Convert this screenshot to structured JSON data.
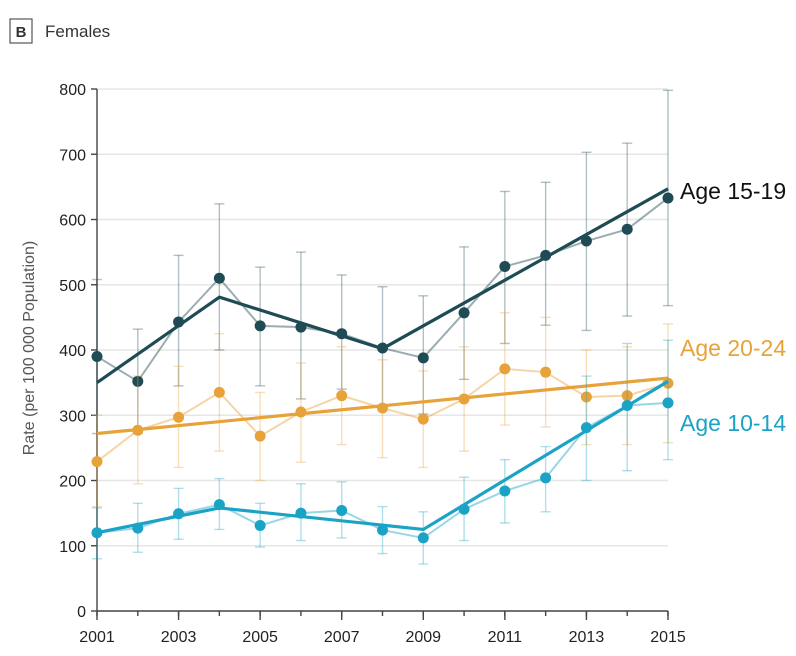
{
  "panel": {
    "letter": "B",
    "title": "Females"
  },
  "chart_data": {
    "type": "line",
    "xlabel": "",
    "ylabel": "Rate (per 100 000 Population)",
    "ylim": [
      0,
      800
    ],
    "yticks": [
      0,
      100,
      200,
      300,
      400,
      500,
      600,
      700,
      800
    ],
    "xlim": [
      2001,
      2015
    ],
    "xticks": [
      2001,
      2003,
      2005,
      2007,
      2009,
      2011,
      2013,
      2015
    ],
    "grid": true,
    "legend": "direct labels at right",
    "x": [
      2001,
      2002,
      2003,
      2004,
      2005,
      2006,
      2007,
      2008,
      2009,
      2010,
      2011,
      2012,
      2013,
      2014,
      2015
    ],
    "series": [
      {
        "name": "Age 15-19",
        "color": "#1f4b55",
        "values": [
          390,
          352,
          443,
          510,
          437,
          435,
          425,
          403,
          388,
          457,
          528,
          545,
          567,
          585,
          633
        ],
        "ci_low": [
          272,
          272,
          345,
          400,
          345,
          325,
          340,
          310,
          302,
          355,
          410,
          438,
          430,
          452,
          468
        ],
        "ci_high": [
          508,
          432,
          545,
          624,
          527,
          550,
          515,
          497,
          483,
          558,
          643,
          657,
          703,
          717,
          798
        ],
        "trend": [
          [
            2001,
            350
          ],
          [
            2004,
            481
          ],
          [
            2008,
            402
          ],
          [
            2015,
            647
          ]
        ]
      },
      {
        "name": "Age 20-24",
        "color": "#e8a23a",
        "values": [
          229,
          277,
          297,
          335,
          268,
          305,
          330,
          311,
          294,
          325,
          371,
          366,
          328,
          330,
          349
        ],
        "ci_low": [
          160,
          195,
          220,
          245,
          200,
          228,
          255,
          235,
          220,
          245,
          285,
          282,
          255,
          255,
          258
        ],
        "ci_high": [
          300,
          360,
          375,
          425,
          335,
          380,
          405,
          385,
          368,
          405,
          457,
          450,
          400,
          405,
          440
        ],
        "trend": [
          [
            2001,
            272
          ],
          [
            2015,
            357
          ]
        ]
      },
      {
        "name": "Age 10-14",
        "color": "#1ba3c6",
        "values": [
          120,
          127,
          149,
          163,
          131,
          150,
          154,
          124,
          112,
          156,
          184,
          204,
          281,
          315,
          319
        ],
        "ci_low": [
          80,
          90,
          110,
          125,
          98,
          108,
          112,
          88,
          72,
          108,
          135,
          152,
          200,
          215,
          232
        ],
        "ci_high": [
          158,
          165,
          188,
          203,
          165,
          195,
          198,
          160,
          152,
          205,
          232,
          252,
          360,
          410,
          415
        ],
        "trend": [
          [
            2001,
            120
          ],
          [
            2004,
            158
          ],
          [
            2009,
            125
          ],
          [
            2015,
            352
          ]
        ]
      }
    ]
  }
}
